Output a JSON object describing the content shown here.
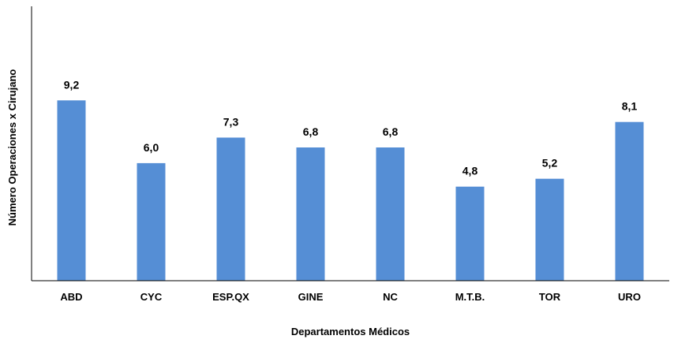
{
  "chart_data": {
    "type": "bar",
    "title": "",
    "xlabel": "Departamentos Médicos",
    "ylabel": "Número Operaciones x Cirujano",
    "categories": [
      "ABD",
      "CYC",
      "ESP.QX",
      "GINE",
      "NC",
      "M.T.B.",
      "TOR",
      "URO"
    ],
    "values": [
      9.2,
      6.0,
      7.3,
      6.8,
      6.8,
      4.8,
      5.2,
      8.1
    ],
    "data_labels": [
      "9,2",
      "6,0",
      "7,3",
      "6,8",
      "6,8",
      "4,8",
      "5,2",
      "8,1"
    ],
    "ylim": [
      0,
      14
    ],
    "grid": false,
    "legend": "none",
    "bar_color": "#558ed5",
    "axis_color": "#000000"
  }
}
